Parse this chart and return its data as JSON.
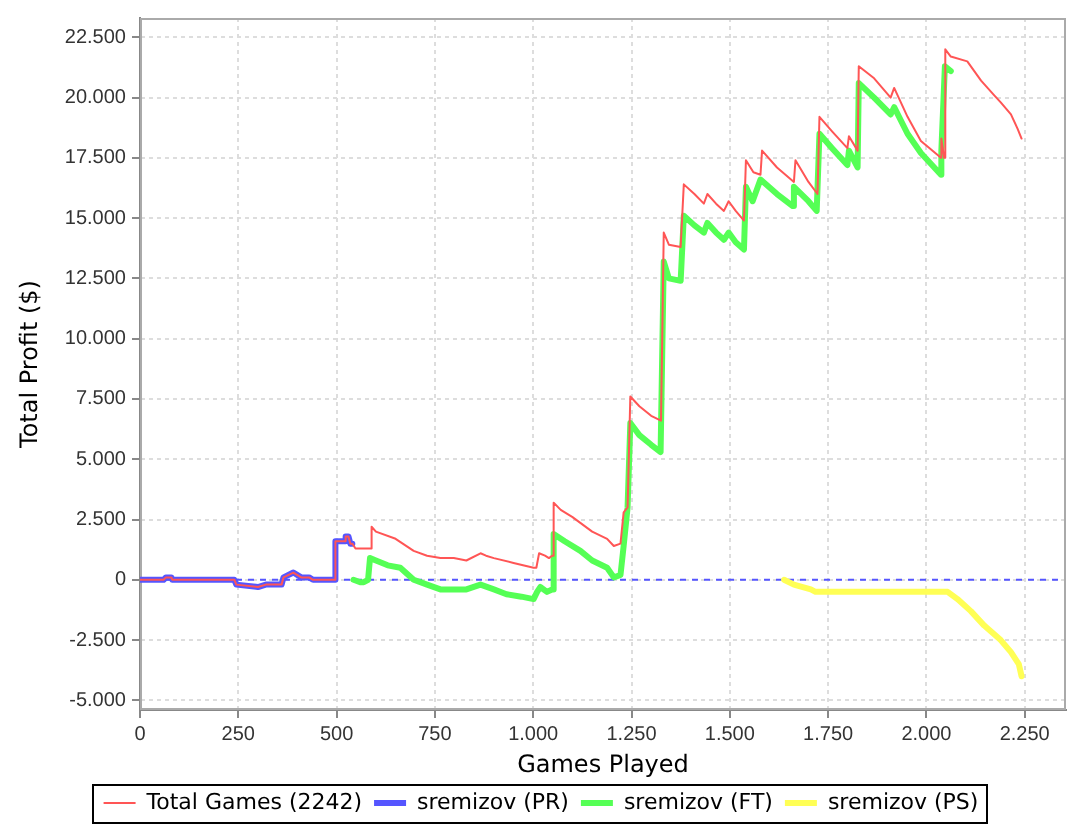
{
  "chart_data": {
    "type": "line",
    "xlabel": "Games Played",
    "ylabel": "Total Profit ($)",
    "xlim": [
      0,
      2355
    ],
    "ylim": [
      -5400,
      23300
    ],
    "xticks": [
      0,
      250,
      500,
      750,
      {
        "value": 1000,
        "label": "1.000"
      },
      {
        "value": 1250,
        "label": "1.250"
      },
      {
        "value": 1500,
        "label": "1.500"
      },
      {
        "value": 1750,
        "label": "1.750"
      },
      {
        "value": 2000,
        "label": "2.000"
      },
      {
        "value": 2250,
        "label": "2.250"
      }
    ],
    "yticks": [
      {
        "value": -5000,
        "label": "-5.000"
      },
      {
        "value": -2500,
        "label": "-2.500"
      },
      0,
      {
        "value": 2500,
        "label": "2.500"
      },
      {
        "value": 5000,
        "label": "5.000"
      },
      {
        "value": 7500,
        "label": "7.500"
      },
      {
        "value": 10000,
        "label": "10.000"
      },
      {
        "value": 12500,
        "label": "12.500"
      },
      {
        "value": 15000,
        "label": "15.000"
      },
      {
        "value": 17500,
        "label": "17.500"
      },
      {
        "value": 20000,
        "label": "20.000"
      },
      {
        "value": 22500,
        "label": "22.500"
      }
    ],
    "grid": true,
    "legend": "bottom",
    "marker": "none",
    "ref_lines": [
      {
        "axis": "y",
        "value": 0,
        "color": "#5555ff",
        "line_style": "dashed"
      }
    ],
    "series": [
      {
        "name": "Total Games (2242)",
        "color": "#ff5555",
        "x": [
          0,
          60,
          66,
          80,
          82,
          240,
          245,
          300,
          320,
          360,
          365,
          390,
          410,
          430,
          440,
          496,
          497,
          520,
          523,
          530,
          535,
          540,
          548,
          560,
          585,
          589,
          600,
          650,
          696,
          730,
          764,
          798,
          830,
          866,
          880,
          900,
          950,
          1001,
          1008,
          1015,
          1030,
          1040,
          1048,
          1052,
          1070,
          1100,
          1150,
          1188,
          1205,
          1222,
          1230,
          1240,
          1247,
          1270,
          1300,
          1325,
          1332,
          1345,
          1375,
          1383,
          1410,
          1434,
          1443,
          1465,
          1485,
          1497,
          1515,
          1536,
          1541,
          1560,
          1578,
          1582,
          1620,
          1663,
          1667,
          1700,
          1723,
          1728,
          1760,
          1799,
          1803,
          1825,
          1828,
          1867,
          1909,
          1918,
          1952,
          1986,
          2037,
          2038,
          2045,
          2048,
          2062,
          2104,
          2139,
          2172,
          2189,
          2215,
          2232,
          2242
        ],
        "values": [
          0,
          0,
          100,
          100,
          0,
          0,
          -200,
          -300,
          -200,
          -200,
          100,
          300,
          100,
          100,
          0,
          0,
          1600,
          1600,
          1800,
          1800,
          1500,
          1500,
          1300,
          1300,
          1300,
          2200,
          2000,
          1700,
          1200,
          1000,
          900,
          900,
          800,
          1100,
          1000,
          900,
          700,
          500,
          500,
          1100,
          1000,
          900,
          1000,
          3200,
          2900,
          2600,
          2000,
          1700,
          1400,
          1500,
          2800,
          3000,
          7600,
          7200,
          6800,
          6600,
          14400,
          13900,
          13800,
          16400,
          16000,
          15600,
          16000,
          15600,
          15300,
          15700,
          15300,
          14900,
          17400,
          16900,
          16800,
          17800,
          17100,
          16500,
          17400,
          16500,
          16000,
          19200,
          18600,
          17900,
          18400,
          17800,
          21300,
          20800,
          20000,
          20400,
          19200,
          18200,
          17500,
          18300,
          17500,
          22000,
          21700,
          21500,
          20700,
          20100,
          19800,
          19300,
          18700,
          18300
        ]
      },
      {
        "name": "sremizov (PR)",
        "color": "#5555ff",
        "x": [
          0,
          60,
          66,
          80,
          82,
          240,
          245,
          300,
          320,
          360,
          365,
          390,
          410,
          430,
          440,
          496,
          497,
          520,
          523,
          530,
          535,
          540
        ],
        "values": [
          0,
          0,
          100,
          100,
          0,
          0,
          -200,
          -300,
          -200,
          -200,
          100,
          300,
          100,
          100,
          0,
          0,
          1600,
          1600,
          1800,
          1800,
          1500,
          1500
        ]
      },
      {
        "name": "sremizov (FT)",
        "color": "#55ff55",
        "x": [
          543,
          560,
          569,
          580,
          585,
          600,
          630,
          662,
          696,
          730,
          764,
          800,
          830,
          866,
          900,
          932,
          970,
          1001,
          1010,
          1018,
          1035,
          1048,
          1052,
          1080,
          1120,
          1150,
          1188,
          1205,
          1222,
          1230,
          1240,
          1247,
          1270,
          1300,
          1324,
          1332,
          1345,
          1375,
          1383,
          1410,
          1434,
          1443,
          1465,
          1485,
          1497,
          1515,
          1536,
          1541,
          1558,
          1578,
          1620,
          1660,
          1663,
          1700,
          1721,
          1728,
          1760,
          1799,
          1803,
          1825,
          1828,
          1867,
          1909,
          1918,
          1952,
          1986,
          2037,
          2038,
          2047,
          2062
        ],
        "values": [
          0,
          -100,
          -100,
          0,
          900,
          800,
          600,
          500,
          0,
          -200,
          -400,
          -400,
          -400,
          -200,
          -400,
          -600,
          -700,
          -800,
          -500,
          -300,
          -500,
          -400,
          1900,
          1600,
          1200,
          800,
          500,
          100,
          200,
          1400,
          3000,
          6500,
          6000,
          5600,
          5300,
          13200,
          12500,
          12400,
          15100,
          14700,
          14400,
          14800,
          14400,
          14100,
          14400,
          14000,
          13700,
          16300,
          15700,
          16600,
          16000,
          15500,
          16300,
          15700,
          15300,
          18500,
          17900,
          17200,
          17800,
          17100,
          20600,
          20000,
          19300,
          19600,
          18500,
          17700,
          16800,
          17800,
          21300,
          21100
        ]
      },
      {
        "name": "sremizov (PS)",
        "color": "#ffff55",
        "x": [
          1638,
          1663,
          1706,
          1718,
          2054,
          2079,
          2113,
          2147,
          2189,
          2215,
          2235,
          2242
        ],
        "values": [
          0,
          -200,
          -400,
          -500,
          -500,
          -800,
          -1300,
          -1900,
          -2500,
          -3000,
          -3500,
          -4000
        ]
      }
    ]
  }
}
